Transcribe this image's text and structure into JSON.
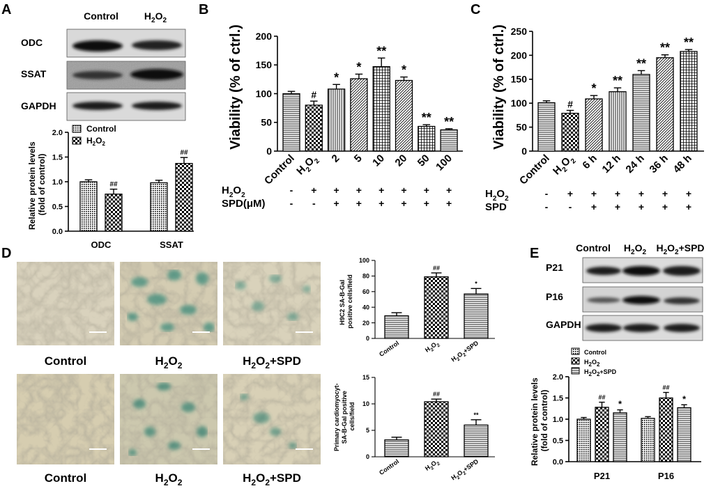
{
  "panels": {
    "A": "A",
    "B": "B",
    "C": "C",
    "D": "D",
    "E": "E"
  },
  "colors": {
    "bar_edge": "#000000",
    "micro_bg": "#d6cbb0",
    "stain": "#3f8a7a"
  },
  "panelA": {
    "blot_header": [
      "Control",
      "H2O2"
    ],
    "blot_labels": [
      "ODC",
      "SSAT",
      "GAPDH"
    ],
    "legend": [
      "Control",
      "H2O2"
    ],
    "ylabel_lines": [
      "Relative protein levels",
      "(fold of control)"
    ],
    "yticks": [
      "0.0",
      "0.5",
      "1.0",
      "1.5",
      "2.0"
    ],
    "chart_data": {
      "type": "bar",
      "categories": [
        "ODC",
        "SSAT"
      ],
      "ylim": [
        0,
        2.0
      ],
      "series": [
        {
          "name": "Control",
          "values": [
            1.0,
            0.98
          ],
          "errors": [
            0.04,
            0.05
          ],
          "sig": [
            "",
            ""
          ]
        },
        {
          "name": "H2O2",
          "values": [
            0.75,
            1.37
          ],
          "errors": [
            0.1,
            0.12
          ],
          "sig": [
            "##",
            "##"
          ]
        }
      ]
    }
  },
  "panelB": {
    "ylabel": "Viability (% of ctrl.)",
    "yticks": [
      "0",
      "50",
      "100",
      "150",
      "200"
    ],
    "treat_rows": [
      {
        "label": "H2O2",
        "marks": [
          "-",
          "+",
          "+",
          "+",
          "+",
          "+",
          "+",
          "+"
        ]
      },
      {
        "label": "SPD(μM)",
        "marks": [
          "-",
          "-",
          "+",
          "+",
          "+",
          "+",
          "+",
          "+"
        ]
      }
    ],
    "chart_data": {
      "type": "bar",
      "categories": [
        "Control",
        "H2O2",
        "2",
        "5",
        "10",
        "20",
        "50",
        "100"
      ],
      "values": [
        100,
        80,
        108,
        126,
        147,
        123,
        43,
        37
      ],
      "errors": [
        4,
        7,
        8,
        8,
        15,
        6,
        3,
        2
      ],
      "sig": [
        "",
        "#",
        "*",
        "*",
        "**",
        "*",
        "**",
        "**"
      ],
      "ylim": [
        0,
        200
      ]
    }
  },
  "panelC": {
    "ylabel": "Viability (% of ctrl.)",
    "yticks": [
      "0",
      "50",
      "100",
      "150",
      "200",
      "250"
    ],
    "treat_rows": [
      {
        "label": "H2O2",
        "marks": [
          "-",
          "+",
          "+",
          "+",
          "+",
          "+",
          "+"
        ]
      },
      {
        "label": "SPD",
        "marks": [
          "-",
          "-",
          "+",
          "+",
          "+",
          "+",
          "+"
        ]
      }
    ],
    "chart_data": {
      "type": "bar",
      "categories": [
        "Control",
        "H2O2",
        "6 h",
        "12 h",
        "24 h",
        "36 h",
        "48 h"
      ],
      "values": [
        101,
        79,
        109,
        124,
        160,
        195,
        208
      ],
      "errors": [
        4,
        6,
        7,
        8,
        8,
        6,
        4
      ],
      "sig": [
        "",
        "#",
        "*",
        "**",
        "**",
        "**",
        "**"
      ],
      "ylim": [
        0,
        250
      ]
    }
  },
  "panelD": {
    "captions_top": [
      "Control",
      "H2O2",
      "H2O2+SPD"
    ],
    "captions_bottom": [
      "Control",
      "H2O2",
      "H2O2+SPD"
    ],
    "chart1": {
      "ylabel_lines": [
        "H9C2 SA-B-Gal",
        "positive cells/field"
      ],
      "yticks": [
        "0",
        "20",
        "40",
        "60",
        "80",
        "100"
      ],
      "chart_data": {
        "type": "bar",
        "categories": [
          "Control",
          "H2O2",
          "H2O2+SPD"
        ],
        "values": [
          29,
          79,
          57
        ],
        "errors": [
          4,
          5,
          7
        ],
        "sig": [
          "",
          "##",
          "*"
        ],
        "ylim": [
          0,
          100
        ]
      }
    },
    "chart2": {
      "ylabel_lines": [
        "Primary cardiomyocyt-",
        "SA-B-Gal positive",
        "cells/field"
      ],
      "yticks": [
        "0",
        "5",
        "10",
        "15"
      ],
      "chart_data": {
        "type": "bar",
        "categories": [
          "Control",
          "H2O2",
          "H2O2+SPD"
        ],
        "values": [
          3.2,
          10.4,
          6.0
        ],
        "errors": [
          0.5,
          0.5,
          1.0
        ],
        "sig": [
          "",
          "##",
          "**"
        ],
        "ylim": [
          0,
          15
        ]
      }
    }
  },
  "panelE": {
    "blot_header": [
      "Control",
      "H2O2",
      "H2O2+SPD"
    ],
    "blot_labels": [
      "P21",
      "P16",
      "GAPDH"
    ],
    "legend": [
      "Control",
      "H2O2",
      "H2O2+SPD"
    ],
    "ylabel_lines": [
      "Relative protein levels",
      "(fold of control)"
    ],
    "yticks": [
      "0.0",
      "0.5",
      "1.0",
      "1.5",
      "2.0"
    ],
    "chart_data": {
      "type": "bar",
      "categories": [
        "P21",
        "P16"
      ],
      "ylim": [
        0,
        2.0
      ],
      "series": [
        {
          "name": "Control",
          "values": [
            1.0,
            1.02
          ],
          "errors": [
            0.04,
            0.04
          ],
          "sig": [
            "",
            ""
          ]
        },
        {
          "name": "H2O2",
          "values": [
            1.28,
            1.5
          ],
          "errors": [
            0.12,
            0.13
          ],
          "sig": [
            "##",
            "##"
          ]
        },
        {
          "name": "H2O2+SPD",
          "values": [
            1.15,
            1.27
          ],
          "errors": [
            0.07,
            0.07
          ],
          "sig": [
            "*",
            "*"
          ]
        }
      ]
    }
  }
}
